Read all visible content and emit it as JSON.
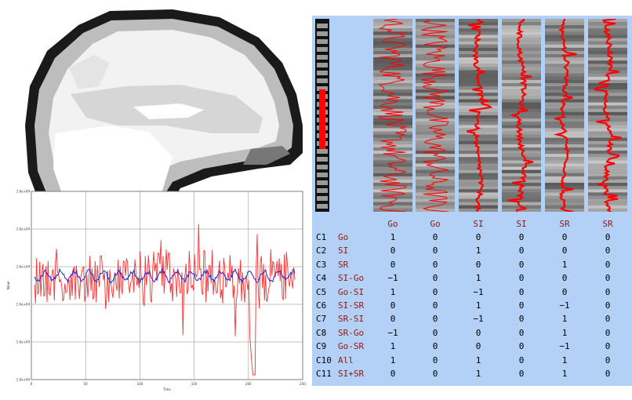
{
  "plot": {
    "xlabel": "Time",
    "ylabel": "Value",
    "x_ticks": [
      "0",
      "50",
      "100",
      "150",
      "200",
      "250"
    ],
    "y_ticks": [
      "1.6e+04",
      "1.6e+04",
      "1.6e+04",
      "1.6e+04",
      "1.6e+04",
      "1.6e+04"
    ],
    "colors": {
      "signal": "#ff3030",
      "model": "#2020dd"
    }
  },
  "design": {
    "column_headers": [
      "Go",
      "Go",
      "SI",
      "SI",
      "SR",
      "SR"
    ],
    "contrasts": [
      {
        "id": "C1",
        "name": "Go",
        "values": [
          "1",
          "0",
          "0",
          "0",
          "0",
          "0"
        ]
      },
      {
        "id": "C2",
        "name": "SI",
        "values": [
          "0",
          "0",
          "1",
          "0",
          "0",
          "0"
        ]
      },
      {
        "id": "C3",
        "name": "SR",
        "values": [
          "0",
          "0",
          "0",
          "0",
          "1",
          "0"
        ]
      },
      {
        "id": "C4",
        "name": "SI-Go",
        "values": [
          "−1",
          "0",
          "1",
          "0",
          "0",
          "0"
        ]
      },
      {
        "id": "C5",
        "name": "Go-SI",
        "values": [
          "1",
          "0",
          "−1",
          "0",
          "0",
          "0"
        ]
      },
      {
        "id": "C6",
        "name": "SI-SR",
        "values": [
          "0",
          "0",
          "1",
          "0",
          "−1",
          "0"
        ]
      },
      {
        "id": "C7",
        "name": "SR-SI",
        "values": [
          "0",
          "0",
          "−1",
          "0",
          "1",
          "0"
        ]
      },
      {
        "id": "C8",
        "name": "SR-Go",
        "values": [
          "−1",
          "0",
          "0",
          "0",
          "1",
          "0"
        ]
      },
      {
        "id": "C9",
        "name": "Go-SR",
        "values": [
          "1",
          "0",
          "0",
          "0",
          "−1",
          "0"
        ]
      },
      {
        "id": "C10",
        "name": "All",
        "values": [
          "1",
          "0",
          "1",
          "0",
          "1",
          "0"
        ]
      },
      {
        "id": "C11",
        "name": "SI+SR",
        "values": [
          "0",
          "0",
          "1",
          "0",
          "1",
          "0"
        ]
      }
    ],
    "accent": "#ff0000",
    "label_color": "#8b1a1a",
    "background": "#b3d1f6"
  }
}
